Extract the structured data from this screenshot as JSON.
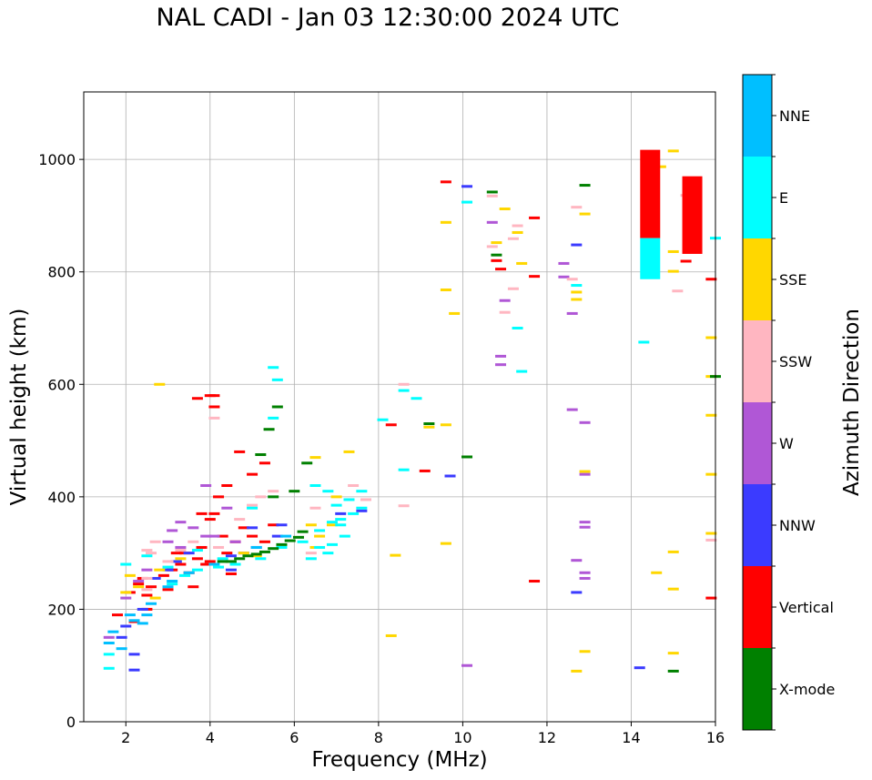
{
  "chart_data": {
    "type": "scatter",
    "title": "NAL CADI - Jan 03 12:30:00 2024 UTC",
    "xlabel": "Frequency (MHz)",
    "ylabel": "Virtual height (km)",
    "xlim": [
      1,
      16
    ],
    "ylim": [
      0,
      1120
    ],
    "xticks": [
      2,
      4,
      6,
      8,
      10,
      12,
      14,
      16
    ],
    "yticks": [
      0,
      200,
      400,
      600,
      800,
      1000
    ],
    "grid": true,
    "colorbar": {
      "label": "Azimuth Direction",
      "categories": [
        "X-mode",
        "Vertical",
        "NNW",
        "W",
        "SSW",
        "SSE",
        "E",
        "NNE"
      ],
      "colors": [
        "#008000",
        "#ff0000",
        "#3b3bff",
        "#b057d6",
        "#ffb6c1",
        "#ffd700",
        "#00ffff",
        "#00bfff"
      ]
    },
    "series": [
      {
        "name": "Vertical",
        "color": "#ff0000",
        "points": [
          [
            1.8,
            190
          ],
          [
            2.1,
            230
          ],
          [
            2.3,
            245
          ],
          [
            2.4,
            255
          ],
          [
            2.5,
            225
          ],
          [
            2.6,
            240
          ],
          [
            2.9,
            260
          ],
          [
            3.0,
            235
          ],
          [
            3.1,
            270
          ],
          [
            3.3,
            280
          ],
          [
            3.4,
            300
          ],
          [
            3.5,
            265
          ],
          [
            3.7,
            290
          ],
          [
            3.8,
            310
          ],
          [
            3.9,
            280
          ],
          [
            4.0,
            285
          ],
          [
            4.0,
            360
          ],
          [
            4.1,
            370
          ],
          [
            4.2,
            400
          ],
          [
            4.3,
            330
          ],
          [
            4.4,
            300
          ],
          [
            4.6,
            320
          ],
          [
            4.8,
            345
          ],
          [
            5.0,
            330
          ],
          [
            5.3,
            320
          ],
          [
            5.5,
            350
          ],
          [
            4.0,
            580
          ],
          [
            4.1,
            560
          ],
          [
            4.1,
            580
          ],
          [
            3.7,
            575
          ],
          [
            4.4,
            420
          ],
          [
            4.7,
            480
          ],
          [
            5.0,
            440
          ],
          [
            5.3,
            460
          ],
          [
            8.3,
            528
          ],
          [
            9.1,
            446
          ],
          [
            9.6,
            960
          ],
          [
            10.8,
            820
          ],
          [
            10.9,
            805
          ],
          [
            11.7,
            896
          ],
          [
            11.7,
            250
          ],
          [
            11.7,
            792
          ],
          [
            15.3,
            819
          ],
          [
            15.9,
            787
          ],
          [
            15.9,
            220
          ],
          [
            4.5,
            263
          ],
          [
            3.6,
            240
          ],
          [
            3.2,
            300
          ],
          [
            3.8,
            370
          ],
          [
            2.2,
            178
          ],
          [
            2.5,
            200
          ]
        ]
      },
      {
        "name": "NNW",
        "color": "#3b3bff",
        "points": [
          [
            1.9,
            150
          ],
          [
            2.0,
            170
          ],
          [
            2.4,
            200
          ],
          [
            2.7,
            255
          ],
          [
            3.0,
            270
          ],
          [
            3.2,
            285
          ],
          [
            3.5,
            300
          ],
          [
            4.5,
            295
          ],
          [
            4.8,
            300
          ],
          [
            5.1,
            310
          ],
          [
            5.6,
            330
          ],
          [
            4.5,
            270
          ],
          [
            5.0,
            345
          ],
          [
            5.7,
            350
          ],
          [
            7.1,
            370
          ],
          [
            7.6,
            375
          ],
          [
            10.1,
            952
          ],
          [
            12.7,
            848
          ],
          [
            12.7,
            230
          ],
          [
            14.2,
            96
          ],
          [
            2.2,
            120
          ],
          [
            2.2,
            92
          ],
          [
            9.7,
            437
          ]
        ]
      },
      {
        "name": "W",
        "color": "#b057d6",
        "points": [
          [
            1.6,
            150
          ],
          [
            2.0,
            220
          ],
          [
            2.3,
            250
          ],
          [
            2.5,
            270
          ],
          [
            3.0,
            320
          ],
          [
            3.1,
            340
          ],
          [
            3.3,
            355
          ],
          [
            3.6,
            345
          ],
          [
            3.9,
            330
          ],
          [
            3.9,
            420
          ],
          [
            3.3,
            310
          ],
          [
            4.1,
            330
          ],
          [
            4.4,
            380
          ],
          [
            4.6,
            320
          ],
          [
            10.1,
            100
          ],
          [
            10.7,
            888
          ],
          [
            10.9,
            650
          ],
          [
            10.9,
            635
          ],
          [
            11.0,
            749
          ],
          [
            12.4,
            815
          ],
          [
            12.4,
            791
          ],
          [
            12.6,
            726
          ],
          [
            12.6,
            555
          ],
          [
            12.7,
            287
          ],
          [
            12.9,
            440
          ],
          [
            12.9,
            355
          ],
          [
            12.9,
            346
          ],
          [
            12.9,
            265
          ],
          [
            12.9,
            255
          ],
          [
            12.9,
            532
          ]
        ]
      },
      {
        "name": "SSW",
        "color": "#ffb6c1",
        "points": [
          [
            2.5,
            235
          ],
          [
            2.5,
            255
          ],
          [
            2.6,
            300
          ],
          [
            2.5,
            305
          ],
          [
            2.7,
            320
          ],
          [
            3.0,
            285
          ],
          [
            3.3,
            305
          ],
          [
            3.6,
            320
          ],
          [
            4.2,
            310
          ],
          [
            4.7,
            360
          ],
          [
            5.0,
            385
          ],
          [
            5.5,
            410
          ],
          [
            6.4,
            300
          ],
          [
            6.5,
            380
          ],
          [
            7.4,
            420
          ],
          [
            7.7,
            395
          ],
          [
            8.6,
            600
          ],
          [
            8.6,
            384
          ],
          [
            10.7,
            845
          ],
          [
            10.7,
            935
          ],
          [
            11.0,
            728
          ],
          [
            11.2,
            859
          ],
          [
            11.3,
            882
          ],
          [
            11.2,
            770
          ],
          [
            12.6,
            787
          ],
          [
            12.7,
            915
          ],
          [
            15.9,
            323
          ],
          [
            15.1,
            766
          ],
          [
            15.3,
            936
          ],
          [
            4.1,
            540
          ],
          [
            5.2,
            400
          ]
        ]
      },
      {
        "name": "SSE",
        "color": "#ffd700",
        "points": [
          [
            2.0,
            230
          ],
          [
            2.1,
            260
          ],
          [
            2.3,
            240
          ],
          [
            2.7,
            220
          ],
          [
            2.8,
            270
          ],
          [
            2.8,
            600
          ],
          [
            3.3,
            290
          ],
          [
            4.8,
            300
          ],
          [
            5.1,
            295
          ],
          [
            6.4,
            350
          ],
          [
            6.6,
            330
          ],
          [
            6.5,
            310
          ],
          [
            6.9,
            350
          ],
          [
            7.0,
            400
          ],
          [
            6.5,
            470
          ],
          [
            7.3,
            480
          ],
          [
            8.4,
            296
          ],
          [
            8.3,
            153
          ],
          [
            9.2,
            524
          ],
          [
            9.6,
            528
          ],
          [
            9.6,
            317
          ],
          [
            9.6,
            888
          ],
          [
            9.8,
            726
          ],
          [
            11.0,
            912
          ],
          [
            11.3,
            870
          ],
          [
            11.4,
            815
          ],
          [
            12.7,
            764
          ],
          [
            12.7,
            751
          ],
          [
            12.7,
            90
          ],
          [
            12.9,
            445
          ],
          [
            12.9,
            125
          ],
          [
            12.9,
            903
          ],
          [
            14.7,
            987
          ],
          [
            14.6,
            265
          ],
          [
            15.0,
            1015
          ],
          [
            15.0,
            836
          ],
          [
            15.0,
            801
          ],
          [
            15.0,
            302
          ],
          [
            15.0,
            236
          ],
          [
            15.0,
            122
          ],
          [
            15.9,
            683
          ],
          [
            15.9,
            614
          ],
          [
            15.9,
            545
          ],
          [
            15.9,
            440
          ],
          [
            15.9,
            335
          ],
          [
            10.8,
            852
          ],
          [
            9.6,
            768
          ]
        ]
      },
      {
        "name": "E",
        "color": "#00ffff",
        "points": [
          [
            1.6,
            120
          ],
          [
            1.6,
            95
          ],
          [
            2.0,
            280
          ],
          [
            2.5,
            295
          ],
          [
            3.1,
            245
          ],
          [
            3.4,
            260
          ],
          [
            3.7,
            270
          ],
          [
            4.2,
            275
          ],
          [
            4.6,
            280
          ],
          [
            5.2,
            290
          ],
          [
            5.7,
            310
          ],
          [
            6.2,
            320
          ],
          [
            6.6,
            340
          ],
          [
            6.9,
            355
          ],
          [
            7.1,
            360
          ],
          [
            7.4,
            370
          ],
          [
            7.6,
            380
          ],
          [
            6.4,
            290
          ],
          [
            6.6,
            310
          ],
          [
            6.9,
            315
          ],
          [
            7.2,
            330
          ],
          [
            7.0,
            385
          ],
          [
            7.3,
            395
          ],
          [
            6.8,
            410
          ],
          [
            7.6,
            410
          ],
          [
            8.1,
            537
          ],
          [
            8.6,
            589
          ],
          [
            8.9,
            575
          ],
          [
            8.6,
            448
          ],
          [
            6.8,
            300
          ],
          [
            7.1,
            350
          ],
          [
            6.5,
            420
          ],
          [
            5.5,
            540
          ],
          [
            5.5,
            630
          ],
          [
            5.6,
            608
          ],
          [
            10.1,
            924
          ],
          [
            11.3,
            700
          ],
          [
            11.4,
            623
          ],
          [
            12.7,
            776
          ],
          [
            14.3,
            675
          ],
          [
            14.5,
            800
          ],
          [
            14.5,
            830
          ],
          [
            14.5,
            850
          ],
          [
            16.0,
            860
          ],
          [
            5.0,
            380
          ],
          [
            4.3,
            290
          ],
          [
            3.7,
            305
          ],
          [
            3.0,
            275
          ]
        ]
      },
      {
        "name": "NNE",
        "color": "#00bfff",
        "points": [
          [
            1.6,
            140
          ],
          [
            1.7,
            160
          ],
          [
            2.1,
            190
          ],
          [
            2.2,
            180
          ],
          [
            2.5,
            190
          ],
          [
            2.6,
            210
          ],
          [
            3.1,
            250
          ],
          [
            3.5,
            265
          ],
          [
            4.1,
            280
          ],
          [
            5.1,
            310
          ],
          [
            5.8,
            330
          ],
          [
            3.0,
            240
          ],
          [
            2.4,
            175
          ],
          [
            1.9,
            130
          ]
        ]
      },
      {
        "name": "X-mode",
        "color": "#008000",
        "points": [
          [
            4.3,
            285
          ],
          [
            4.5,
            285
          ],
          [
            4.7,
            290
          ],
          [
            4.9,
            295
          ],
          [
            5.1,
            298
          ],
          [
            5.3,
            302
          ],
          [
            5.5,
            308
          ],
          [
            5.7,
            315
          ],
          [
            5.9,
            322
          ],
          [
            6.1,
            328
          ],
          [
            6.2,
            338
          ],
          [
            5.2,
            475
          ],
          [
            5.4,
            520
          ],
          [
            5.6,
            560
          ],
          [
            5.5,
            400
          ],
          [
            6.0,
            410
          ],
          [
            6.3,
            460
          ],
          [
            10.1,
            471
          ],
          [
            10.7,
            942
          ],
          [
            10.8,
            830
          ],
          [
            12.9,
            954
          ],
          [
            15.0,
            90
          ],
          [
            9.2,
            530
          ],
          [
            16.0,
            614
          ]
        ]
      }
    ],
    "vertical_bars": [
      {
        "azimuth": "Vertical",
        "x": 14.45,
        "y_from": 860,
        "y_to": 1017
      },
      {
        "azimuth": "E",
        "x": 14.45,
        "y_from": 787,
        "y_to": 860
      },
      {
        "azimuth": "Vertical",
        "x": 15.45,
        "y_from": 832,
        "y_to": 970
      }
    ]
  }
}
